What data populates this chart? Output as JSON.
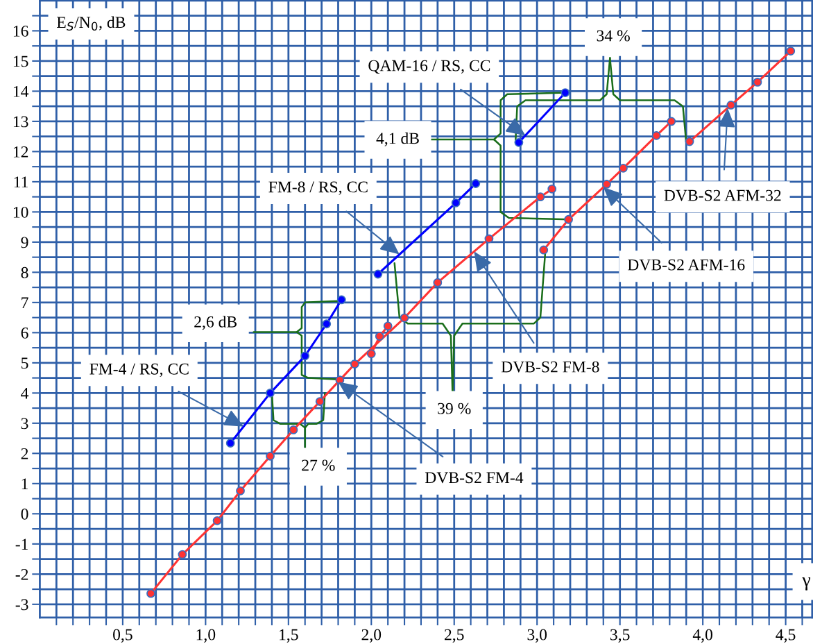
{
  "chart_data": {
    "type": "line",
    "xlabel": "γ",
    "ylabel": "E$_{S}$/N$_{0}$, dB",
    "xlim": [
      0,
      4.66
    ],
    "ylim": [
      -3.44,
      17
    ],
    "xticks": [
      {
        "value": 0.1,
        "label": null
      },
      {
        "value": 0.2,
        "label": null
      },
      {
        "value": 0.3,
        "label": null
      },
      {
        "value": 0.4,
        "label": null
      },
      {
        "value": 0.5,
        "label": "0,5"
      },
      {
        "value": 0.6,
        "label": null
      },
      {
        "value": 0.7,
        "label": null
      },
      {
        "value": 0.8,
        "label": null
      },
      {
        "value": 0.9,
        "label": null
      },
      {
        "value": 1.0,
        "label": "1,0"
      },
      {
        "value": 1.1,
        "label": null
      },
      {
        "value": 1.2,
        "label": null
      },
      {
        "value": 1.3,
        "label": null
      },
      {
        "value": 1.4,
        "label": null
      },
      {
        "value": 1.5,
        "label": "1,5"
      },
      {
        "value": 1.6,
        "label": null
      },
      {
        "value": 1.7,
        "label": null
      },
      {
        "value": 1.8,
        "label": null
      },
      {
        "value": 1.9,
        "label": null
      },
      {
        "value": 2.0,
        "label": "2,0"
      },
      {
        "value": 2.1,
        "label": null
      },
      {
        "value": 2.2,
        "label": null
      },
      {
        "value": 2.3,
        "label": null
      },
      {
        "value": 2.4,
        "label": null
      },
      {
        "value": 2.5,
        "label": "2,5"
      },
      {
        "value": 2.6,
        "label": null
      },
      {
        "value": 2.7,
        "label": null
      },
      {
        "value": 2.8,
        "label": null
      },
      {
        "value": 2.9,
        "label": null
      },
      {
        "value": 3.0,
        "label": "3,0"
      },
      {
        "value": 3.1,
        "label": null
      },
      {
        "value": 3.2,
        "label": null
      },
      {
        "value": 3.3,
        "label": null
      },
      {
        "value": 3.4,
        "label": null
      },
      {
        "value": 3.5,
        "label": "3,5"
      },
      {
        "value": 3.6,
        "label": null
      },
      {
        "value": 3.7,
        "label": null
      },
      {
        "value": 3.8,
        "label": null
      },
      {
        "value": 3.9,
        "label": null
      },
      {
        "value": 4.0,
        "label": "4,0"
      },
      {
        "value": 4.1,
        "label": null
      },
      {
        "value": 4.2,
        "label": null
      },
      {
        "value": 4.3,
        "label": null
      },
      {
        "value": 4.4,
        "label": null
      },
      {
        "value": 4.5,
        "label": "4,5"
      },
      {
        "value": 4.6,
        "label": null
      }
    ],
    "yticks": [
      -3,
      {
        "value": -2.5,
        "label": null
      },
      -2,
      {
        "value": -1.5,
        "label": null
      },
      -1,
      {
        "value": -0.5,
        "label": null
      },
      0,
      {
        "value": 0.5,
        "label": null
      },
      1,
      {
        "value": 1.5,
        "label": null
      },
      2,
      {
        "value": 2.5,
        "label": null
      },
      3,
      {
        "value": 3.5,
        "label": null
      },
      4,
      {
        "value": 4.5,
        "label": null
      },
      5,
      {
        "value": 5.5,
        "label": null
      },
      6,
      {
        "value": 6.5,
        "label": null
      },
      7,
      {
        "value": 7.5,
        "label": null
      },
      8,
      {
        "value": 8.5,
        "label": null
      },
      9,
      {
        "value": 9.5,
        "label": null
      },
      10,
      {
        "value": 10.5,
        "label": null
      },
      11,
      {
        "value": 11.5,
        "label": null
      },
      12,
      {
        "value": 12.5,
        "label": null
      },
      13,
      {
        "value": 13.5,
        "label": null
      },
      14,
      {
        "value": 14.5,
        "label": null
      },
      15,
      {
        "value": 15.5,
        "label": null
      },
      16,
      {
        "value": 16.5,
        "label": null
      }
    ],
    "grid": true,
    "marker": "circle",
    "line_style": "solid",
    "series": [
      {
        "color": "#ff3333",
        "x": [
          0.67,
          0.86,
          1.07,
          1.21,
          1.39,
          1.53,
          1.69,
          1.81,
          1.9,
          2.2,
          2.4,
          2.71,
          3.02,
          3.09
        ],
        "values": [
          -2.64,
          -1.35,
          -0.23,
          0.76,
          1.91,
          2.78,
          3.72,
          4.43,
          4.96,
          6.49,
          7.66,
          9.11,
          10.5,
          10.76
        ]
      },
      {
        "color": "#ff3333",
        "x": [
          2.0,
          2.05,
          2.1
        ],
        "values": [
          5.3,
          5.88,
          6.22
        ]
      },
      {
        "color": "#ff3333",
        "x": [
          3.04,
          3.19,
          3.42,
          3.52,
          3.72,
          3.81
        ],
        "values": [
          8.74,
          9.75,
          10.92,
          11.45,
          12.53,
          13.0
        ]
      },
      {
        "color": "#ff3333",
        "x": [
          3.92,
          4.17,
          4.33,
          4.53
        ],
        "values": [
          12.33,
          13.54,
          14.3,
          15.33
        ]
      },
      {
        "color": "#0000ff",
        "x": [
          1.15,
          1.39,
          1.6,
          1.73,
          1.82
        ],
        "values": [
          2.34,
          4.0,
          5.23,
          6.29,
          7.09
        ]
      },
      {
        "color": "#0000ff",
        "x": [
          2.04,
          2.51,
          2.63
        ],
        "values": [
          7.94,
          10.3,
          10.94
        ]
      },
      {
        "color": "#0000ff",
        "x": [
          2.89,
          3.17
        ],
        "values": [
          12.3,
          13.95
        ]
      }
    ],
    "annotations": [
      {
        "text": "QAM-16 / RS, CC",
        "x": 2.93,
        "y": 12.53
      },
      {
        "text": "FM-8 / RS, CC",
        "x": 2.17,
        "y": 8.59
      },
      {
        "text": "FM-4 / RS, CC",
        "x": 1.23,
        "y": 2.89
      },
      {
        "text": "DVB-S2 FM-4",
        "x": 1.8,
        "y": 4.37
      },
      {
        "text": "DVB-S2 FM-8",
        "x": 2.62,
        "y": 8.69
      },
      {
        "text": "DVB-S2 AFM-16",
        "x": 3.4,
        "y": 10.82
      },
      {
        "text": "DVB-S2 AFM-32",
        "x": 4.15,
        "y": 13.44
      },
      {
        "text": "2,6 dB",
        "x": 1.82,
        "y": 7.09
      },
      {
        "text": "4,1 dB",
        "x": 3.17,
        "y": 13.95
      },
      {
        "text": "34 %",
        "x": 3.92,
        "y": 12.33
      },
      {
        "text": "39 %",
        "x": 3.04,
        "y": 8.74
      },
      {
        "text": "27 %",
        "x": 1.39,
        "y": 4.0
      }
    ]
  }
}
